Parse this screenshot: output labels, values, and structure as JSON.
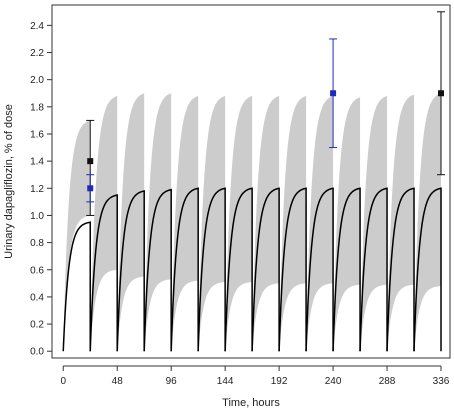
{
  "chart_data": {
    "type": "line",
    "xlabel": "Time, hours",
    "ylabel": "Urinary dapagliflozin, % of dose",
    "xlim": [
      -10,
      344
    ],
    "ylim": [
      -0.05,
      2.55
    ],
    "xticks": [
      0,
      48,
      96,
      144,
      192,
      240,
      288,
      336
    ],
    "yticks": [
      0.0,
      0.2,
      0.4,
      0.6,
      0.8,
      1.0,
      1.2,
      1.4,
      1.6,
      1.8,
      2.0,
      2.2,
      2.4
    ],
    "xtick_labels": [
      "0",
      "48",
      "96",
      "144",
      "192",
      "240",
      "288",
      "336"
    ],
    "ytick_labels": [
      "0.0",
      "0.2",
      "0.4",
      "0.6",
      "0.8",
      "1.0",
      "1.2",
      "1.4",
      "1.6",
      "1.8",
      "2.0",
      "2.2",
      "2.4"
    ],
    "dosing_interval_hours": 24,
    "prediction_band": {
      "color": "#cccccc",
      "intervals": [
        {
          "start": 0,
          "end": 24,
          "upper_max": 1.7,
          "lower_max": 1.0
        },
        {
          "start": 24,
          "end": 48,
          "upper_max": 1.88,
          "lower_max": 0.6
        },
        {
          "start": 48,
          "end": 72,
          "upper_max": 1.9,
          "lower_max": 0.55
        },
        {
          "start": 72,
          "end": 96,
          "upper_max": 1.9,
          "lower_max": 0.53
        },
        {
          "start": 96,
          "end": 120,
          "upper_max": 1.88,
          "lower_max": 0.52
        },
        {
          "start": 120,
          "end": 144,
          "upper_max": 1.88,
          "lower_max": 0.51
        },
        {
          "start": 144,
          "end": 168,
          "upper_max": 1.88,
          "lower_max": 0.51
        },
        {
          "start": 168,
          "end": 192,
          "upper_max": 1.88,
          "lower_max": 0.5
        },
        {
          "start": 192,
          "end": 216,
          "upper_max": 1.88,
          "lower_max": 0.5
        },
        {
          "start": 216,
          "end": 240,
          "upper_max": 1.88,
          "lower_max": 0.5
        },
        {
          "start": 240,
          "end": 264,
          "upper_max": 1.87,
          "lower_max": 0.49
        },
        {
          "start": 264,
          "end": 288,
          "upper_max": 1.88,
          "lower_max": 0.49
        },
        {
          "start": 288,
          "end": 312,
          "upper_max": 1.89,
          "lower_max": 0.49
        },
        {
          "start": 312,
          "end": 336,
          "upper_max": 1.9,
          "lower_max": 0.48
        }
      ]
    },
    "median_line": {
      "color": "#000000",
      "interval_max": [
        0.95,
        1.15,
        1.18,
        1.19,
        1.2,
        1.2,
        1.2,
        1.2,
        1.2,
        1.2,
        1.2,
        1.2,
        1.2,
        1.2
      ]
    },
    "observed": [
      {
        "group": "black",
        "color": "#111111",
        "x": 24,
        "y": 1.4,
        "lower": 1.0,
        "upper": 1.7
      },
      {
        "group": "blue",
        "color": "#1f2bb8",
        "x": 24,
        "y": 1.2,
        "lower": 1.1,
        "upper": 1.3
      },
      {
        "group": "blue",
        "color": "#1f2bb8",
        "x": 240,
        "y": 1.9,
        "lower": 1.5,
        "upper": 2.3
      },
      {
        "group": "black",
        "color": "#111111",
        "x": 336,
        "y": 1.9,
        "lower": 1.3,
        "upper": 2.5
      }
    ]
  }
}
